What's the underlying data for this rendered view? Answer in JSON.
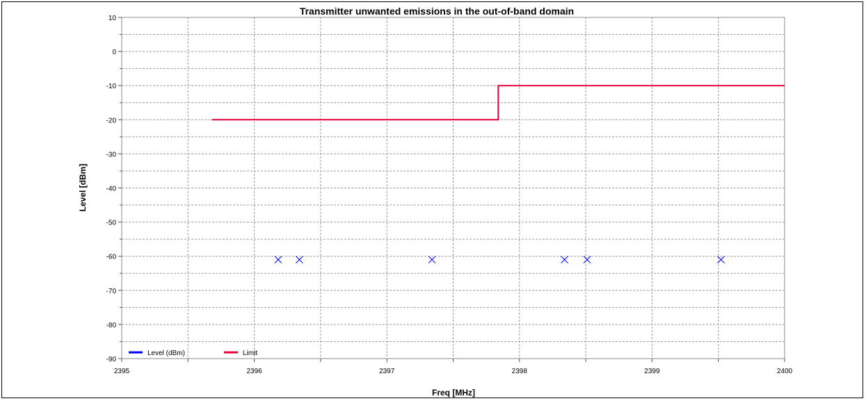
{
  "chart_data": {
    "type": "scatter",
    "title": "Transmitter unwanted emissions in the out-of-band domain",
    "xlabel": "Freq [MHz]",
    "ylabel": "Level [dBm]",
    "xlim": [
      2395,
      2400
    ],
    "ylim": [
      -90,
      10
    ],
    "x_ticks": [
      "2395",
      "2396",
      "2397",
      "2398",
      "2399",
      "2400"
    ],
    "y_ticks": [
      "10",
      "0",
      "-10",
      "-20",
      "-30",
      "-40",
      "-50",
      "-60",
      "-70",
      "-80",
      "-90"
    ],
    "grid": true,
    "legend_position": "bottom-left",
    "series": [
      {
        "name": "Level (dBm)",
        "color": "#0000ff",
        "marker": "x",
        "x": [
          2396.18,
          2396.34,
          2397.34,
          2398.34,
          2398.51,
          2399.52
        ],
        "y": [
          -61,
          -61,
          -61,
          -61,
          -61,
          -61
        ]
      },
      {
        "name": "Limit",
        "color": "#e8003a",
        "line": "step",
        "x": [
          2395.68,
          2397.84,
          2397.84,
          2400
        ],
        "y": [
          -20,
          -20,
          -10,
          -10
        ]
      }
    ]
  }
}
